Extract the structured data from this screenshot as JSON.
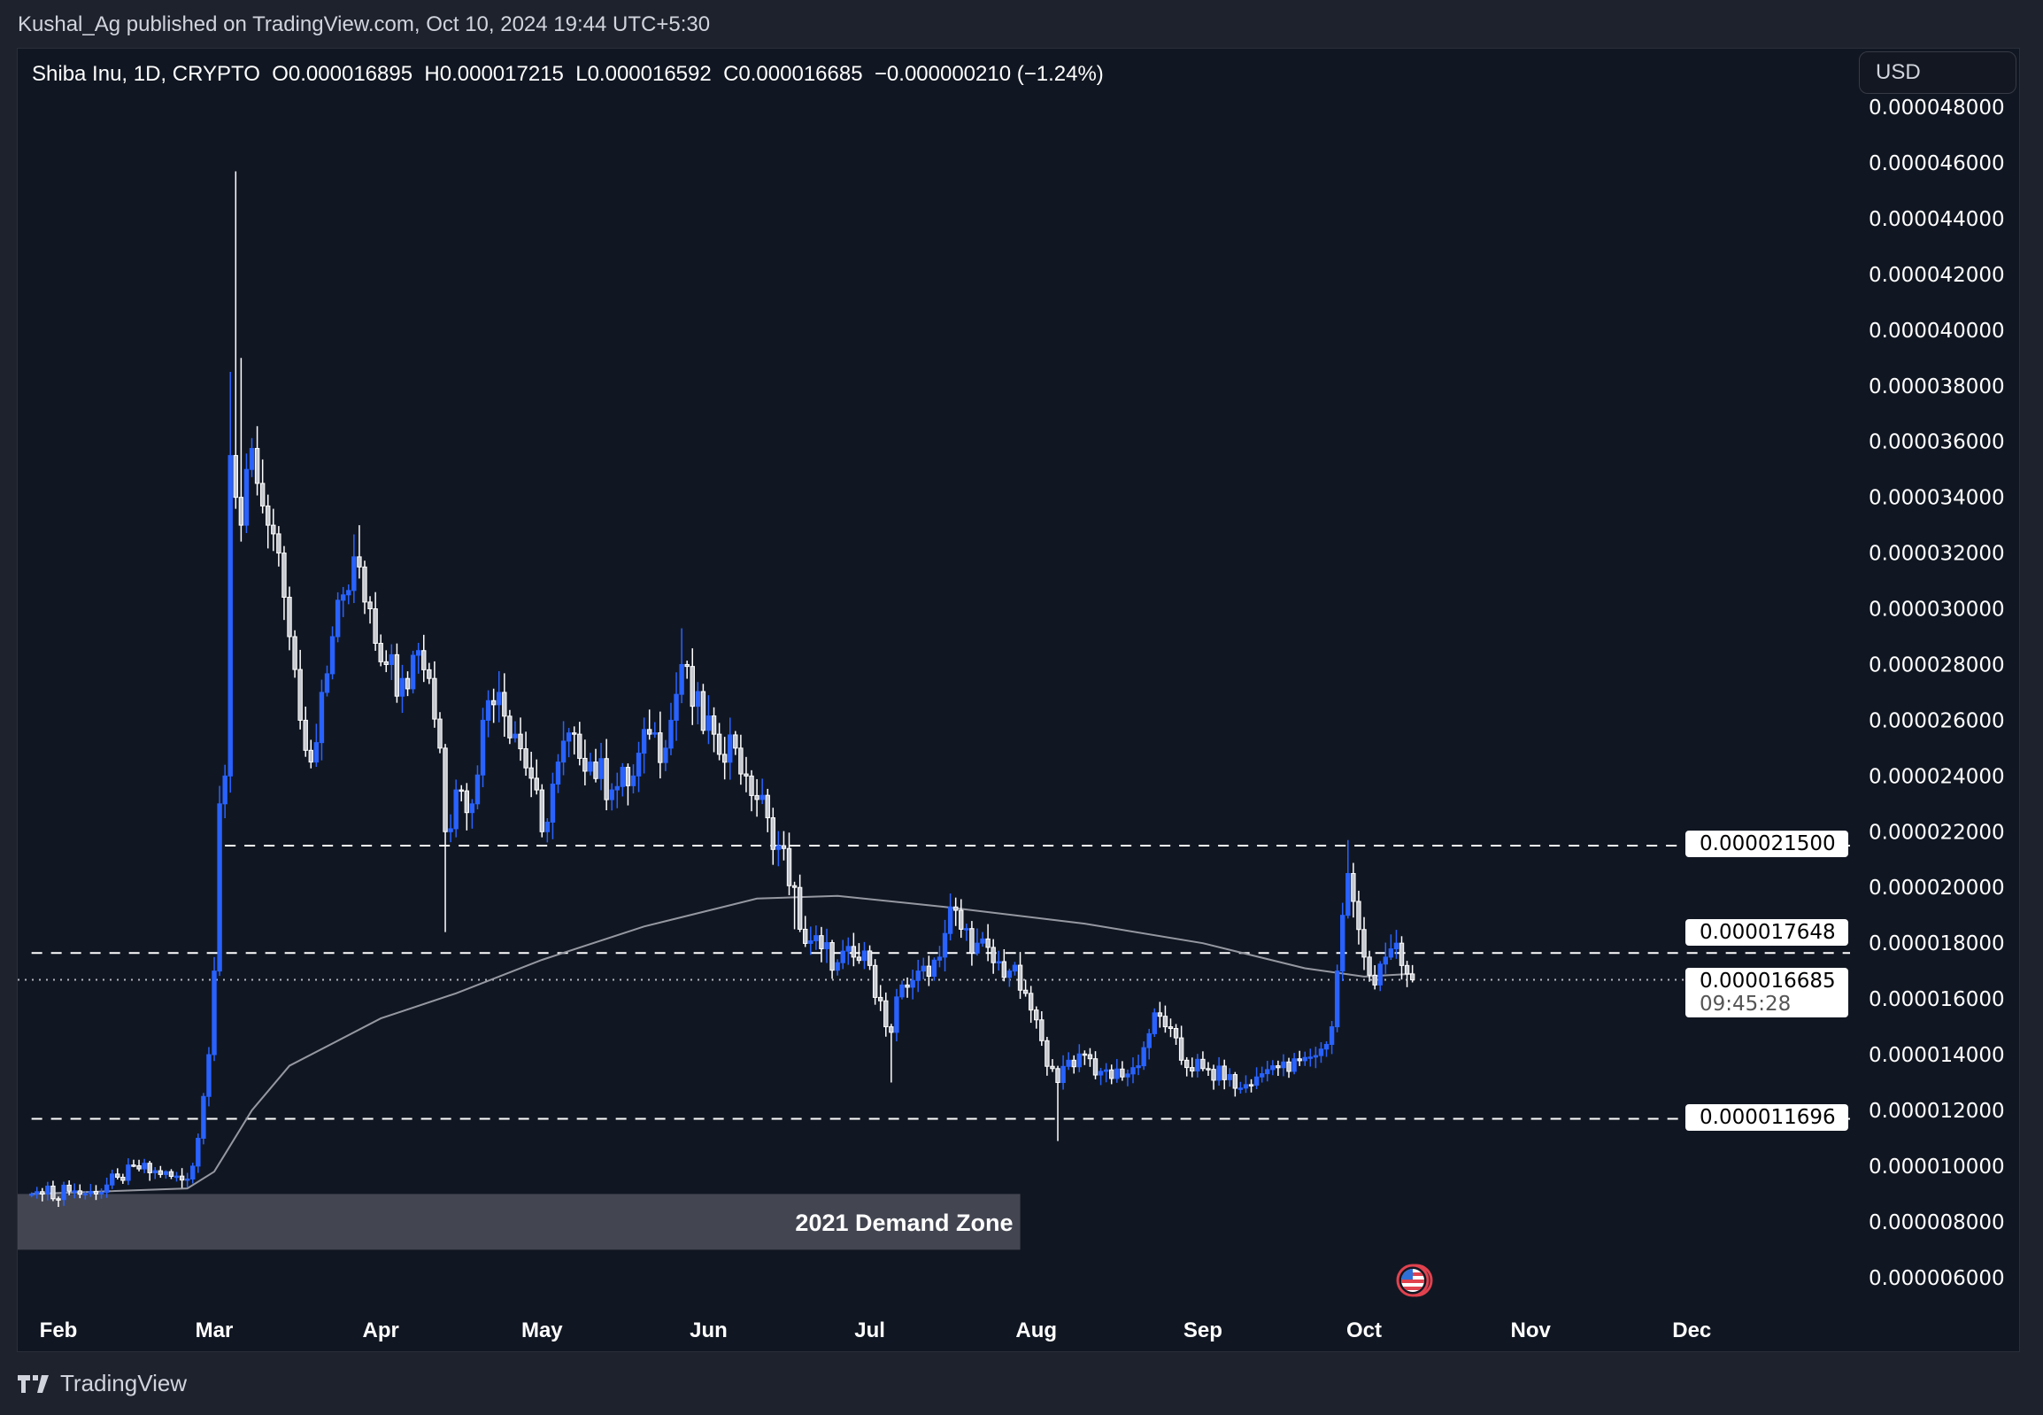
{
  "header": {
    "published": "Kushal_Ag published on TradingView.com, Oct 10, 2024 19:44 UTC+5:30"
  },
  "legend": {
    "symbol": "Shiba Inu, 1D, CRYPTO",
    "open": "O0.000016895",
    "high": "H0.000017215",
    "low": "L0.000016592",
    "close": "C0.000016685",
    "change": "−0.000000210 (−1.24%)"
  },
  "currency_button": "USD",
  "footer": {
    "brand": "TradingView"
  },
  "chart_data": {
    "type": "candlestick",
    "colors": {
      "up": "#2962ff",
      "down": "#ffffff",
      "moving_average": "#b2b5be",
      "background": "#111722"
    },
    "y_ticks": [
      "0.000006000",
      "0.000008000",
      "0.000010000",
      "0.000012000",
      "0.000014000",
      "0.000016000",
      "0.000018000",
      "0.000020000",
      "0.000022000",
      "0.000024000",
      "0.000026000",
      "0.000028000",
      "0.000030000",
      "0.000032000",
      "0.000034000",
      "0.000036000",
      "0.000038000",
      "0.000040000",
      "0.000042000",
      "0.000044000",
      "0.000046000",
      "0.000048000"
    ],
    "x_ticks": [
      {
        "label": "Feb",
        "date": "2024-02-01"
      },
      {
        "label": "Mar",
        "date": "2024-03-01"
      },
      {
        "label": "Apr",
        "date": "2024-04-01"
      },
      {
        "label": "May",
        "date": "2024-05-01"
      },
      {
        "label": "Jun",
        "date": "2024-06-01"
      },
      {
        "label": "Jul",
        "date": "2024-07-01"
      },
      {
        "label": "Aug",
        "date": "2024-08-01"
      },
      {
        "label": "Sep",
        "date": "2024-09-01"
      },
      {
        "label": "Oct",
        "date": "2024-10-01"
      },
      {
        "label": "Nov",
        "date": "2024-11-01"
      },
      {
        "label": "Dec",
        "date": "2024-12-01"
      }
    ],
    "close_keypoints": [
      [
        "2024-01-27",
        9e-06
      ],
      [
        "2024-02-03",
        9.1e-06
      ],
      [
        "2024-02-08",
        9e-06
      ],
      [
        "2024-02-12",
        9.6e-06
      ],
      [
        "2024-02-16",
        9.9e-06
      ],
      [
        "2024-02-20",
        9.7e-06
      ],
      [
        "2024-02-24",
        9.5e-06
      ],
      [
        "2024-02-26",
        1e-05
      ],
      [
        "2024-02-27",
        1.1e-05
      ],
      [
        "2024-02-28",
        1.25e-05
      ],
      [
        "2024-02-29",
        1.4e-05
      ],
      [
        "2024-03-01",
        1.7e-05
      ],
      [
        "2024-03-02",
        2.3e-05
      ],
      [
        "2024-03-03",
        2.4e-05
      ],
      [
        "2024-03-04",
        3.55e-05
      ],
      [
        "2024-03-05",
        3.4e-05
      ],
      [
        "2024-03-06",
        3.3e-05
      ],
      [
        "2024-03-07",
        3.5e-05
      ],
      [
        "2024-03-09",
        3.45e-05
      ],
      [
        "2024-03-11",
        3.3e-05
      ],
      [
        "2024-03-13",
        3.2e-05
      ],
      [
        "2024-03-15",
        2.9e-05
      ],
      [
        "2024-03-17",
        2.6e-05
      ],
      [
        "2024-03-19",
        2.45e-05
      ],
      [
        "2024-03-21",
        2.7e-05
      ],
      [
        "2024-03-23",
        2.9e-05
      ],
      [
        "2024-03-25",
        3.05e-05
      ],
      [
        "2024-03-28",
        3.15e-05
      ],
      [
        "2024-03-30",
        3e-05
      ],
      [
        "2024-04-02",
        2.8e-05
      ],
      [
        "2024-04-05",
        2.75e-05
      ],
      [
        "2024-04-08",
        2.85e-05
      ],
      [
        "2024-04-10",
        2.75e-05
      ],
      [
        "2024-04-12",
        2.5e-05
      ],
      [
        "2024-04-13",
        2.2e-05
      ],
      [
        "2024-04-15",
        2.35e-05
      ],
      [
        "2024-04-18",
        2.3e-05
      ],
      [
        "2024-04-20",
        2.6e-05
      ],
      [
        "2024-04-23",
        2.7e-05
      ],
      [
        "2024-04-26",
        2.55e-05
      ],
      [
        "2024-04-30",
        2.35e-05
      ],
      [
        "2024-05-01",
        2.2e-05
      ],
      [
        "2024-05-04",
        2.45e-05
      ],
      [
        "2024-05-07",
        2.55e-05
      ],
      [
        "2024-05-10",
        2.45e-05
      ],
      [
        "2024-05-14",
        2.35e-05
      ],
      [
        "2024-05-18",
        2.4e-05
      ],
      [
        "2024-05-21",
        2.55e-05
      ],
      [
        "2024-05-24",
        2.5e-05
      ],
      [
        "2024-05-27",
        2.8e-05
      ],
      [
        "2024-05-29",
        2.65e-05
      ],
      [
        "2024-06-02",
        2.55e-05
      ],
      [
        "2024-06-06",
        2.5e-05
      ],
      [
        "2024-06-08",
        2.4e-05
      ],
      [
        "2024-06-12",
        2.25e-05
      ],
      [
        "2024-06-14",
        2.15e-05
      ],
      [
        "2024-06-17",
        2e-05
      ],
      [
        "2024-06-18",
        1.85e-05
      ],
      [
        "2024-06-22",
        1.78e-05
      ],
      [
        "2024-06-25",
        1.73e-05
      ],
      [
        "2024-06-28",
        1.75e-05
      ],
      [
        "2024-07-01",
        1.72e-05
      ],
      [
        "2024-07-04",
        1.5e-05
      ],
      [
        "2024-07-05",
        1.48e-05
      ],
      [
        "2024-07-07",
        1.65e-05
      ],
      [
        "2024-07-10",
        1.7e-05
      ],
      [
        "2024-07-14",
        1.75e-05
      ],
      [
        "2024-07-16",
        1.93e-05
      ],
      [
        "2024-07-18",
        1.85e-05
      ],
      [
        "2024-07-21",
        1.8e-05
      ],
      [
        "2024-07-24",
        1.73e-05
      ],
      [
        "2024-07-27",
        1.7e-05
      ],
      [
        "2024-07-30",
        1.62e-05
      ],
      [
        "2024-08-02",
        1.45e-05
      ],
      [
        "2024-08-04",
        1.35e-05
      ],
      [
        "2024-08-05",
        1.3e-05
      ],
      [
        "2024-08-07",
        1.38e-05
      ],
      [
        "2024-08-10",
        1.4e-05
      ],
      [
        "2024-08-13",
        1.34e-05
      ],
      [
        "2024-08-17",
        1.32e-05
      ],
      [
        "2024-08-20",
        1.36e-05
      ],
      [
        "2024-08-23",
        1.55e-05
      ],
      [
        "2024-08-25",
        1.5e-05
      ],
      [
        "2024-08-28",
        1.38e-05
      ],
      [
        "2024-09-01",
        1.35e-05
      ],
      [
        "2024-09-05",
        1.31e-05
      ],
      [
        "2024-09-08",
        1.28e-05
      ],
      [
        "2024-09-11",
        1.32e-05
      ],
      [
        "2024-09-14",
        1.36e-05
      ],
      [
        "2024-09-17",
        1.34e-05
      ],
      [
        "2024-09-20",
        1.39e-05
      ],
      [
        "2024-09-23",
        1.42e-05
      ],
      [
        "2024-09-25",
        1.5e-05
      ],
      [
        "2024-09-26",
        1.7e-05
      ],
      [
        "2024-09-27",
        1.9e-05
      ],
      [
        "2024-09-28",
        2.05e-05
      ],
      [
        "2024-09-29",
        1.95e-05
      ],
      [
        "2024-10-01",
        1.75e-05
      ],
      [
        "2024-10-03",
        1.65e-05
      ],
      [
        "2024-10-05",
        1.75e-05
      ],
      [
        "2024-10-07",
        1.8e-05
      ],
      [
        "2024-10-08",
        1.72e-05
      ],
      [
        "2024-10-09",
        1.6895e-05
      ],
      [
        "2024-10-10",
        1.6685e-05
      ]
    ],
    "notable_wicks": [
      [
        "2024-03-04",
        "high",
        3.85e-05
      ],
      [
        "2024-03-05",
        "high",
        4.57e-05
      ],
      [
        "2024-03-06",
        "high",
        3.9e-05
      ],
      [
        "2024-03-28",
        "high",
        3.3e-05
      ],
      [
        "2024-04-13",
        "low",
        1.84e-05
      ],
      [
        "2024-05-27",
        "high",
        2.93e-05
      ],
      [
        "2024-06-17",
        "low",
        1.85e-05
      ],
      [
        "2024-07-05",
        "low",
        1.3e-05
      ],
      [
        "2024-08-05",
        "low",
        1.09e-05
      ],
      [
        "2024-09-28",
        "high",
        2.17e-05
      ],
      [
        "2024-10-10",
        "high",
        1.7215e-05
      ],
      [
        "2024-10-10",
        "low",
        1.6592e-05
      ]
    ],
    "moving_average": [
      [
        "2024-01-27",
        9e-06
      ],
      [
        "2024-02-25",
        9.2e-06
      ],
      [
        "2024-03-01",
        9.8e-06
      ],
      [
        "2024-03-08",
        1.2e-05
      ],
      [
        "2024-03-15",
        1.36e-05
      ],
      [
        "2024-04-01",
        1.53e-05
      ],
      [
        "2024-04-15",
        1.62e-05
      ],
      [
        "2024-05-01",
        1.74e-05
      ],
      [
        "2024-05-20",
        1.86e-05
      ],
      [
        "2024-06-10",
        1.96e-05
      ],
      [
        "2024-06-25",
        1.97e-05
      ],
      [
        "2024-07-15",
        1.93e-05
      ],
      [
        "2024-08-10",
        1.87e-05
      ],
      [
        "2024-09-01",
        1.8e-05
      ],
      [
        "2024-09-20",
        1.71e-05
      ],
      [
        "2024-10-01",
        1.68e-05
      ],
      [
        "2024-10-10",
        1.69e-05
      ]
    ],
    "horizontal_lines": [
      {
        "price": 2.15e-05,
        "label": "0.000021500",
        "from": "2024-03-03",
        "style": "dashed"
      },
      {
        "price": 1.7648e-05,
        "label": "0.000017648",
        "from": "2024-01-27",
        "style": "dashed"
      },
      {
        "price": 1.1696e-05,
        "label": "0.000011696",
        "from": "2024-01-27",
        "style": "dashed"
      }
    ],
    "last_price": {
      "price": 1.6685e-05,
      "label": "0.000016685",
      "countdown": "09:45:28",
      "style": "dotted"
    },
    "demand_zone": {
      "label": "2021 Demand Zone",
      "top": 9e-06,
      "bottom": 7e-06,
      "from": "2024-01-27",
      "to": "2024-07-29",
      "color": "#434651"
    }
  }
}
